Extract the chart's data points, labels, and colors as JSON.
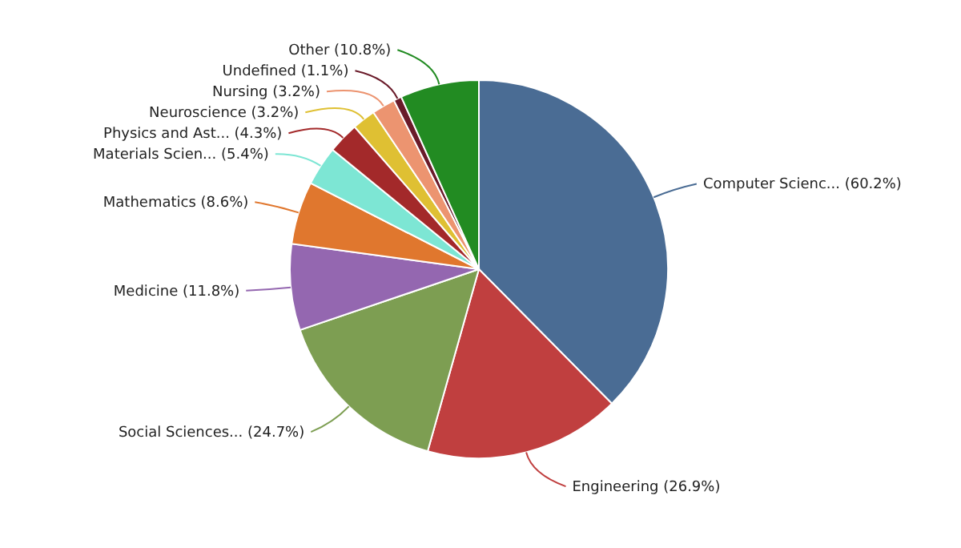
{
  "chart_data": {
    "type": "pie",
    "categories": [
      "Computer Scienc...",
      "Engineering",
      "Social Sciences...",
      "Medicine",
      "Mathematics",
      "Materials Scien...",
      "Physics and Ast...",
      "Neuroscience",
      "Nursing",
      "Undefined",
      "Other"
    ],
    "values": [
      60.2,
      26.9,
      24.7,
      11.8,
      8.6,
      5.4,
      4.3,
      3.2,
      3.2,
      1.1,
      10.8
    ],
    "value_labels": [
      "(60.2%)",
      "(26.9%)",
      "(24.7%)",
      "(11.8%)",
      "(8.6%)",
      "(5.4%)",
      "(4.3%)",
      "(3.2%)",
      "(3.2%)",
      "(1.1%)",
      "(10.8%)"
    ],
    "colors": [
      "#4a6c94",
      "#c03f3f",
      "#7d9e52",
      "#9467b0",
      "#e0772e",
      "#7de6d4",
      "#a3292a",
      "#dfc033",
      "#ec9470",
      "#6a1b2a",
      "#228b22"
    ]
  }
}
